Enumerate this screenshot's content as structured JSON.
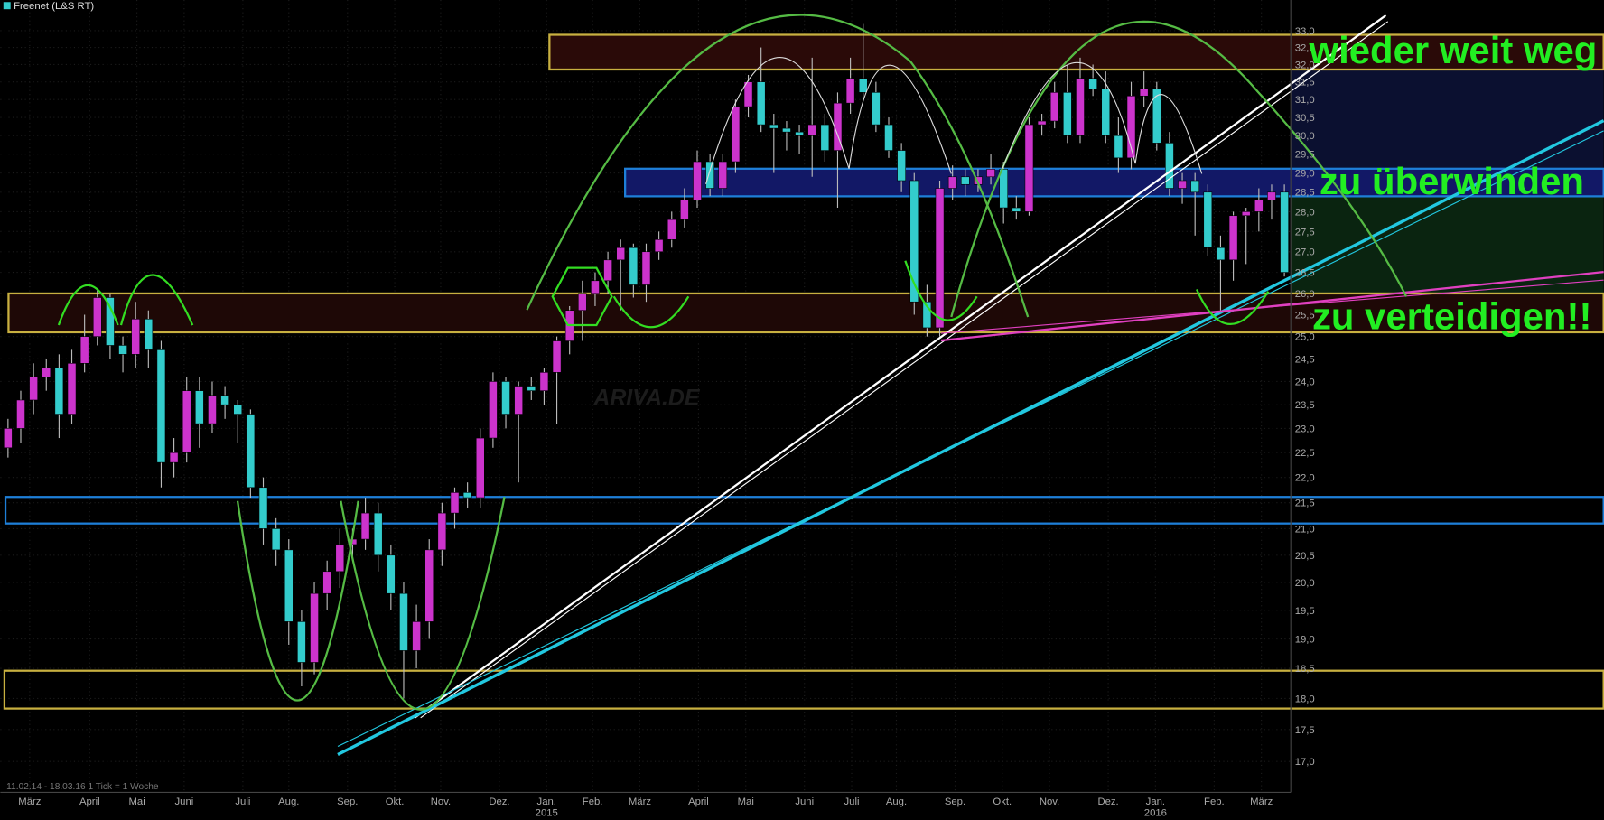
{
  "chart_data": {
    "type": "candlestick",
    "title": "Freenet (L&S RT)",
    "footer": "11.02.14 - 18.03.16   1 Tick = 1 Woche",
    "watermark": "ARIVA.DE",
    "annotations": [
      "wieder weit weg",
      "zu überwinden",
      "zu verteidigen!!"
    ],
    "up_color": "#cc33cc",
    "down_color": "#33cccc",
    "log_scale": true,
    "grid": true,
    "ylim": [
      16.53,
      33.93
    ],
    "yticks": [
      {
        "value": 17,
        "label": "17,0"
      },
      {
        "value": 17.5,
        "label": "17,5"
      },
      {
        "value": 18,
        "label": "18,0"
      },
      {
        "value": 18.5,
        "label": "18,5"
      },
      {
        "value": 19,
        "label": "19,0"
      },
      {
        "value": 19.5,
        "label": "19,5"
      },
      {
        "value": 20,
        "label": "20,0"
      },
      {
        "value": 20.5,
        "label": "20,5"
      },
      {
        "value": 21,
        "label": "21,0"
      },
      {
        "value": 21.5,
        "label": "21,5"
      },
      {
        "value": 22,
        "label": "22,0"
      },
      {
        "value": 22.5,
        "label": "22,5"
      },
      {
        "value": 23,
        "label": "23,0"
      },
      {
        "value": 23.5,
        "label": "23,5"
      },
      {
        "value": 24,
        "label": "24,0"
      },
      {
        "value": 24.5,
        "label": "24,5"
      },
      {
        "value": 25,
        "label": "25,0"
      },
      {
        "value": 25.5,
        "label": "25,5"
      },
      {
        "value": 26,
        "label": "26,0"
      },
      {
        "value": 26.5,
        "label": "26,5"
      },
      {
        "value": 27,
        "label": "27,0"
      },
      {
        "value": 27.5,
        "label": "27,5"
      },
      {
        "value": 28,
        "label": "28,0"
      },
      {
        "value": 28.5,
        "label": "28,5"
      },
      {
        "value": 29,
        "label": "29,0"
      },
      {
        "value": 29.5,
        "label": "29,5"
      },
      {
        "value": 30,
        "label": "30,0"
      },
      {
        "value": 30.5,
        "label": "30,5"
      },
      {
        "value": 31,
        "label": "31,0"
      },
      {
        "value": 31.5,
        "label": "31,5"
      },
      {
        "value": 32,
        "label": "32,0"
      },
      {
        "value": 32.5,
        "label": "32,5"
      },
      {
        "value": 33,
        "label": "33,0"
      }
    ],
    "xlim": [
      -0.6,
      100.5
    ],
    "xticks": [
      {
        "value": 1.7,
        "label": "März"
      },
      {
        "value": 6.4,
        "label": "April"
      },
      {
        "value": 10.1,
        "label": "Mai"
      },
      {
        "value": 13.8,
        "label": "Juni"
      },
      {
        "value": 18.4,
        "label": "Juli"
      },
      {
        "value": 22,
        "label": "Aug."
      },
      {
        "value": 26.6,
        "label": "Sep."
      },
      {
        "value": 30.3,
        "label": "Okt."
      },
      {
        "value": 33.9,
        "label": "Nov."
      },
      {
        "value": 38.5,
        "label": "Dez."
      },
      {
        "value": 42.2,
        "label": "Jan."
      },
      {
        "value": 45.8,
        "label": "Feb."
      },
      {
        "value": 49.5,
        "label": "März"
      },
      {
        "value": 54.1,
        "label": "April"
      },
      {
        "value": 57.8,
        "label": "Mai"
      },
      {
        "value": 62.4,
        "label": "Juni"
      },
      {
        "value": 66.1,
        "label": "Juli"
      },
      {
        "value": 69.6,
        "label": "Aug."
      },
      {
        "value": 74.2,
        "label": "Sep."
      },
      {
        "value": 77.9,
        "label": "Okt."
      },
      {
        "value": 81.6,
        "label": "Nov."
      },
      {
        "value": 86.2,
        "label": "Dez."
      },
      {
        "value": 89.9,
        "label": "Jan."
      },
      {
        "value": 94.5,
        "label": "Feb."
      },
      {
        "value": 98.2,
        "label": "März"
      }
    ],
    "year_ticks": [
      {
        "value": 42.2,
        "label": "2015"
      },
      {
        "value": 89.9,
        "label": "2016"
      }
    ],
    "candles": [
      [
        22.6,
        23.2,
        22.4,
        23.0
      ],
      [
        23.0,
        23.8,
        22.7,
        23.6
      ],
      [
        23.6,
        24.4,
        23.3,
        24.1
      ],
      [
        24.1,
        24.5,
        23.8,
        24.3
      ],
      [
        24.3,
        24.6,
        22.8,
        23.3
      ],
      [
        23.3,
        24.7,
        23.1,
        24.4
      ],
      [
        24.4,
        25.5,
        24.2,
        25.0
      ],
      [
        25.0,
        26.1,
        24.8,
        25.9
      ],
      [
        25.9,
        26.0,
        24.5,
        24.8
      ],
      [
        24.8,
        25.0,
        24.2,
        24.6
      ],
      [
        24.6,
        25.8,
        24.3,
        25.4
      ],
      [
        25.4,
        25.6,
        24.3,
        24.7
      ],
      [
        24.7,
        24.9,
        21.8,
        22.3
      ],
      [
        22.3,
        22.8,
        22.0,
        22.5
      ],
      [
        22.5,
        24.1,
        22.3,
        23.8
      ],
      [
        23.8,
        24.1,
        22.6,
        23.1
      ],
      [
        23.1,
        24.0,
        22.9,
        23.7
      ],
      [
        23.7,
        23.9,
        23.2,
        23.5
      ],
      [
        23.5,
        23.6,
        22.7,
        23.3
      ],
      [
        23.3,
        23.4,
        21.6,
        21.8
      ],
      [
        21.8,
        22.0,
        20.7,
        21.0
      ],
      [
        21.0,
        21.2,
        20.3,
        20.6
      ],
      [
        20.6,
        20.8,
        18.9,
        19.3
      ],
      [
        19.3,
        19.5,
        18.2,
        18.6
      ],
      [
        18.6,
        20.0,
        18.4,
        19.8
      ],
      [
        19.8,
        20.4,
        19.5,
        20.2
      ],
      [
        20.2,
        21.0,
        19.9,
        20.7
      ],
      [
        20.7,
        21.0,
        20.4,
        20.8
      ],
      [
        20.8,
        21.6,
        20.6,
        21.3
      ],
      [
        21.3,
        21.5,
        20.2,
        20.5
      ],
      [
        20.5,
        20.7,
        19.5,
        19.8
      ],
      [
        19.8,
        20.0,
        18.0,
        18.8
      ],
      [
        18.8,
        19.6,
        18.5,
        19.3
      ],
      [
        19.3,
        20.8,
        19.0,
        20.6
      ],
      [
        20.6,
        21.5,
        20.3,
        21.3
      ],
      [
        21.3,
        21.8,
        21.0,
        21.7
      ],
      [
        21.7,
        21.9,
        21.4,
        21.6
      ],
      [
        21.6,
        23.0,
        21.4,
        22.8
      ],
      [
        22.8,
        24.2,
        22.6,
        24.0
      ],
      [
        24.0,
        24.1,
        23.0,
        23.3
      ],
      [
        23.3,
        24.0,
        21.9,
        23.9
      ],
      [
        23.9,
        24.1,
        23.6,
        23.8
      ],
      [
        23.8,
        24.3,
        23.5,
        24.2
      ],
      [
        24.2,
        25.0,
        23.1,
        24.9
      ],
      [
        24.9,
        25.7,
        24.6,
        25.6
      ],
      [
        25.6,
        26.3,
        24.9,
        26.0
      ],
      [
        26.0,
        26.5,
        25.7,
        26.3
      ],
      [
        26.3,
        27.0,
        26.0,
        26.8
      ],
      [
        26.8,
        27.3,
        25.6,
        27.1
      ],
      [
        27.1,
        27.2,
        25.9,
        26.2
      ],
      [
        26.2,
        27.2,
        25.8,
        27.0
      ],
      [
        27.0,
        27.5,
        26.8,
        27.3
      ],
      [
        27.3,
        28.0,
        27.1,
        27.8
      ],
      [
        27.8,
        28.6,
        27.6,
        28.3
      ],
      [
        28.3,
        29.6,
        28.1,
        29.3
      ],
      [
        29.3,
        29.5,
        28.4,
        28.6
      ],
      [
        28.6,
        29.5,
        28.4,
        29.3
      ],
      [
        29.3,
        31.0,
        29.0,
        30.8
      ],
      [
        30.8,
        31.7,
        30.5,
        31.5
      ],
      [
        31.5,
        32.5,
        30.1,
        30.3
      ],
      [
        30.3,
        30.6,
        29.0,
        30.2
      ],
      [
        30.2,
        30.4,
        29.6,
        30.1
      ],
      [
        30.1,
        30.3,
        29.5,
        30.0
      ],
      [
        30.0,
        32.2,
        28.9,
        30.3
      ],
      [
        30.3,
        30.6,
        29.3,
        29.6
      ],
      [
        29.6,
        31.2,
        28.1,
        30.9
      ],
      [
        30.9,
        32.2,
        30.6,
        31.6
      ],
      [
        31.6,
        33.2,
        31.0,
        31.2
      ],
      [
        31.2,
        31.5,
        30.1,
        30.3
      ],
      [
        30.3,
        30.5,
        29.4,
        29.6
      ],
      [
        29.6,
        29.8,
        28.5,
        28.8
      ],
      [
        28.8,
        29.0,
        25.5,
        25.8
      ],
      [
        25.8,
        26.2,
        25.0,
        25.2
      ],
      [
        25.2,
        28.8,
        25.0,
        28.6
      ],
      [
        28.6,
        29.2,
        28.3,
        28.9
      ],
      [
        28.9,
        29.1,
        28.4,
        28.7
      ],
      [
        28.7,
        29.1,
        28.5,
        28.9
      ],
      [
        28.9,
        29.5,
        28.7,
        29.1
      ],
      [
        29.1,
        29.3,
        27.7,
        28.1
      ],
      [
        28.1,
        28.4,
        27.8,
        28.0
      ],
      [
        28.0,
        30.5,
        27.9,
        30.3
      ],
      [
        30.3,
        30.6,
        30.0,
        30.4
      ],
      [
        30.4,
        31.5,
        30.2,
        31.2
      ],
      [
        31.2,
        32.0,
        29.8,
        30.0
      ],
      [
        30.0,
        32.2,
        29.8,
        31.6
      ],
      [
        31.6,
        32.0,
        31.1,
        31.3
      ],
      [
        31.3,
        31.8,
        29.8,
        30.0
      ],
      [
        30.0,
        30.5,
        29.0,
        29.4
      ],
      [
        29.4,
        31.5,
        29.1,
        31.1
      ],
      [
        31.1,
        31.8,
        30.8,
        31.3
      ],
      [
        31.3,
        31.5,
        29.6,
        29.8
      ],
      [
        29.8,
        30.1,
        28.4,
        28.6
      ],
      [
        28.6,
        29.0,
        28.2,
        28.8
      ],
      [
        28.8,
        29.0,
        27.4,
        28.5
      ],
      [
        28.5,
        28.7,
        26.9,
        27.1
      ],
      [
        27.1,
        27.4,
        25.6,
        26.8
      ],
      [
        26.8,
        28.0,
        26.3,
        27.9
      ],
      [
        27.9,
        28.1,
        26.7,
        28.0
      ],
      [
        28.0,
        28.6,
        27.5,
        28.3
      ],
      [
        28.3,
        28.7,
        27.8,
        28.5
      ],
      [
        28.5,
        28.7,
        26.4,
        26.5
      ]
    ]
  }
}
